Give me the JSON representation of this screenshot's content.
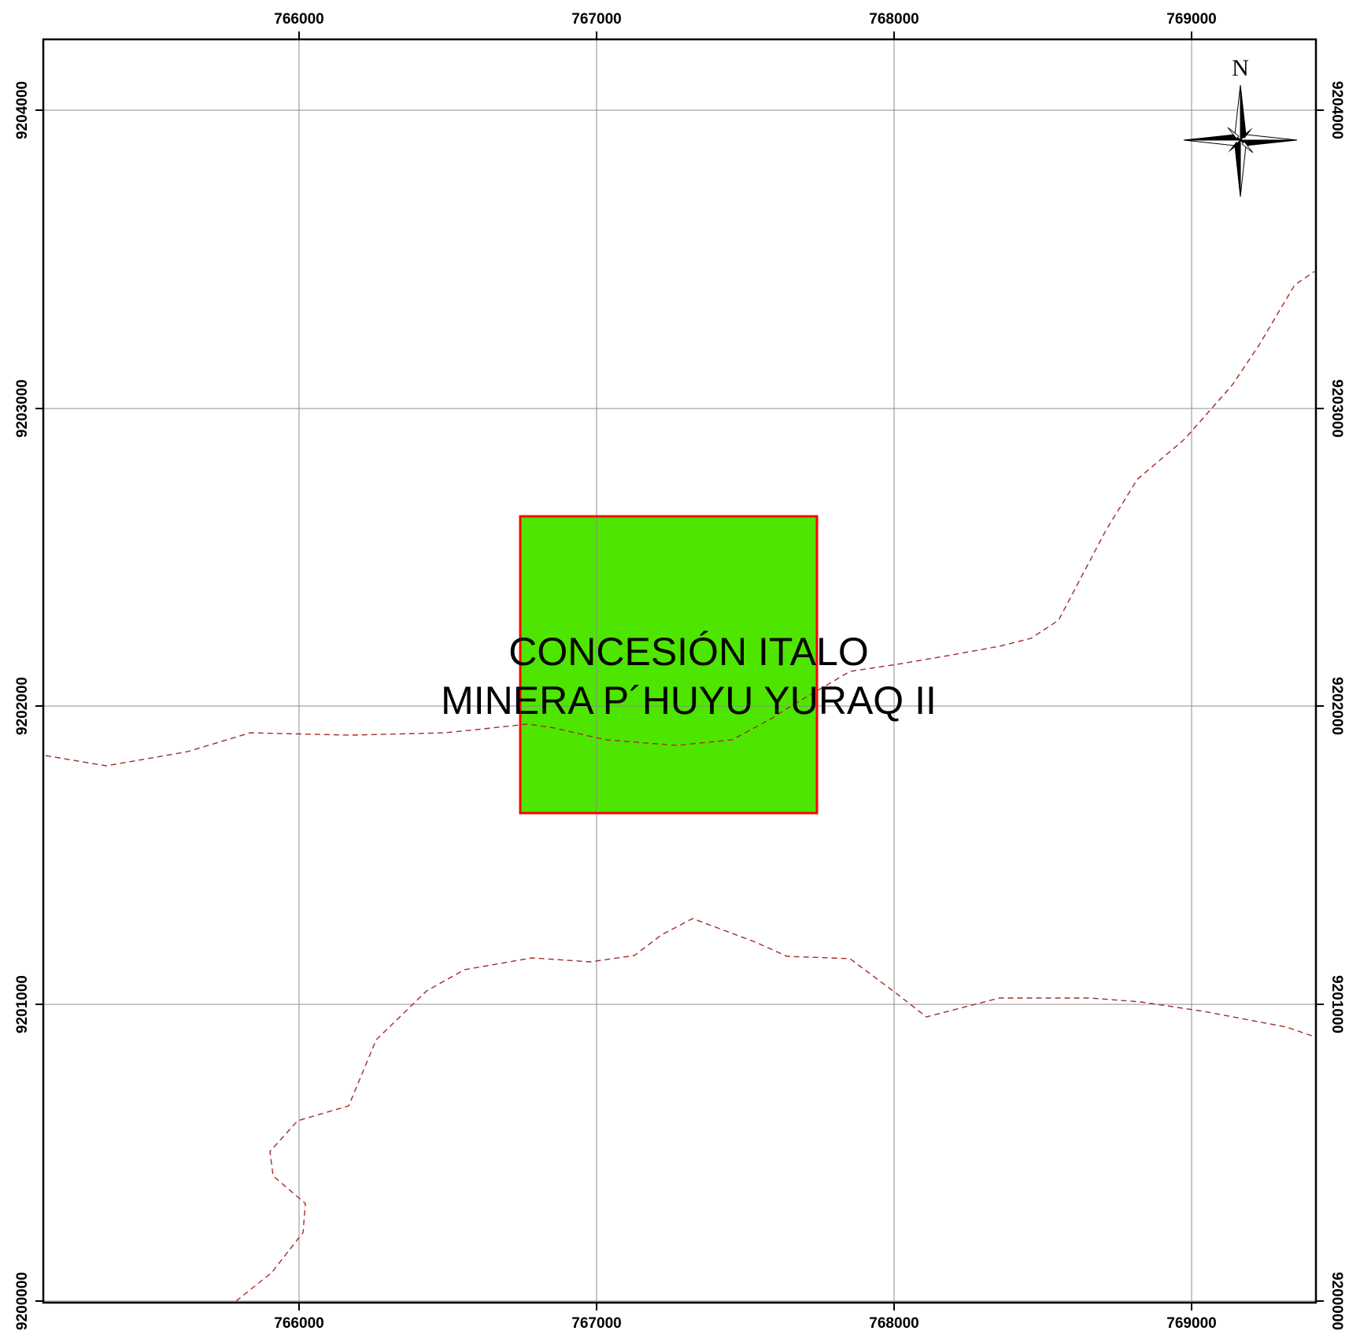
{
  "map": {
    "easting_ticks": [
      "766000",
      "767000",
      "768000",
      "769000"
    ],
    "northing_ticks": [
      "9204000",
      "9203000",
      "9202000",
      "9201000",
      "9200000"
    ],
    "concession": {
      "label_line1": "CONCESIÓN ITALO",
      "label_line2": "MINERA P´HUYU YURAQ II",
      "fill_color": "#4ee600",
      "border_color": "#ff0000"
    },
    "road_color": "#a52a2a",
    "north_arrow": {
      "letter": "N"
    }
  }
}
